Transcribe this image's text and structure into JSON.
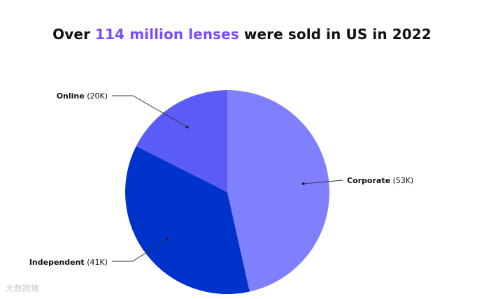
{
  "title": {
    "prefix": "Over ",
    "highlight": "114 million lenses",
    "suffix": " were sold in US in 2022"
  },
  "colors": {
    "title_highlight": "#7a4cff",
    "corporate": "#8080ff",
    "independent": "#0033cc",
    "online": "#5b5cf6"
  },
  "chart_data": {
    "type": "pie",
    "title": "Over 114 million lenses were sold in US in 2022",
    "slices": [
      {
        "label": "Corporate",
        "value_text": "(53K)",
        "value": 53,
        "color": "#8080ff"
      },
      {
        "label": "Independent",
        "value_text": "(41K)",
        "value": 41,
        "color": "#0033cc"
      },
      {
        "label": "Online",
        "value_text": "(20K)",
        "value": 20,
        "color": "#5b5cf6"
      }
    ]
  },
  "watermark": "大数跨境"
}
